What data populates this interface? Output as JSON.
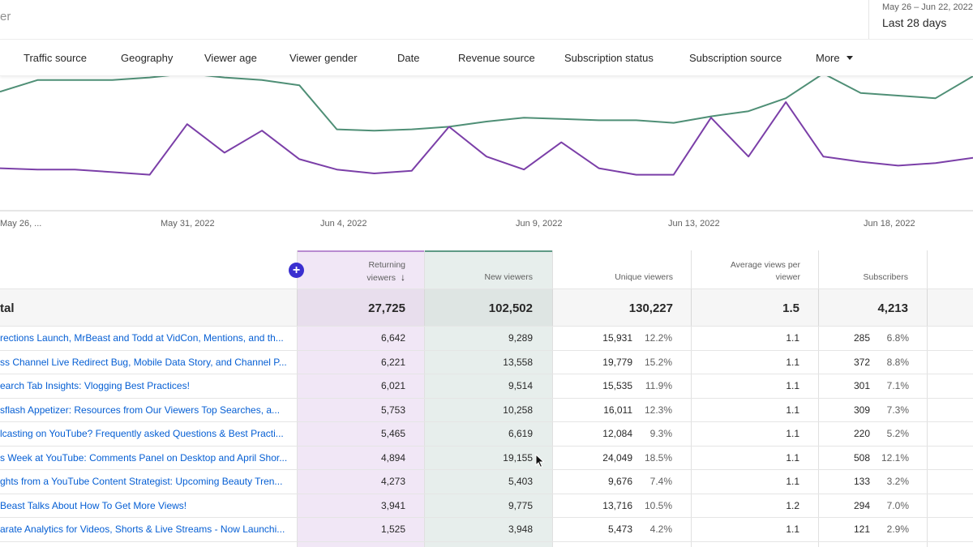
{
  "header": {
    "filter_fragment": "er",
    "date_range": "May 26 – Jun 22, 2022",
    "date_label": "Last 28 days"
  },
  "tabs": [
    "Traffic source",
    "Geography",
    "Viewer age",
    "Viewer gender",
    "Date",
    "Revenue source",
    "Subscription status",
    "Subscription source",
    "More"
  ],
  "chart_data": {
    "type": "line",
    "x_ticks": [
      "May 26, ...",
      "May 31, 2022",
      "Jun 4, 2022",
      "Jun 9, 2022",
      "Jun 13, 2022",
      "Jun 18, 2022"
    ],
    "series": [
      {
        "name": "New viewers",
        "color": "#4f8f76",
        "values": [
          0.88,
          0.97,
          0.97,
          0.97,
          0.99,
          1.02,
          0.99,
          0.97,
          0.93,
          0.59,
          0.58,
          0.59,
          0.61,
          0.65,
          0.68,
          0.67,
          0.66,
          0.66,
          0.64,
          0.69,
          0.73,
          0.83,
          1.02,
          0.87,
          0.85,
          0.83,
          1.0
        ]
      },
      {
        "name": "Returning viewers",
        "color": "#7b3fa8",
        "values": [
          0.29,
          0.28,
          0.28,
          0.26,
          0.24,
          0.63,
          0.41,
          0.58,
          0.36,
          0.28,
          0.25,
          0.27,
          0.61,
          0.38,
          0.28,
          0.49,
          0.29,
          0.24,
          0.24,
          0.68,
          0.38,
          0.8,
          0.38,
          0.34,
          0.31,
          0.33,
          0.37
        ]
      }
    ]
  },
  "table": {
    "headers": {
      "returning": [
        "Returning",
        "viewers"
      ],
      "new": "New viewers",
      "unique": "Unique viewers",
      "avg": [
        "Average views per",
        "viewer"
      ],
      "subscribers": "Subscribers"
    },
    "total": {
      "label": "tal",
      "returning": "27,725",
      "new": "102,502",
      "unique": "130,227",
      "avg": "1.5",
      "subscribers": "4,213"
    },
    "rows": [
      {
        "title": "rections Launch, MrBeast and Todd at VidCon, Mentions, and th...",
        "returning": "6,642",
        "new": "9,289",
        "unique": "15,931",
        "unique_pct": "12.2%",
        "avg": "1.1",
        "subs": "285",
        "subs_pct": "6.8%"
      },
      {
        "title": "ss Channel Live Redirect Bug, Mobile Data Story, and Channel P...",
        "returning": "6,221",
        "new": "13,558",
        "unique": "19,779",
        "unique_pct": "15.2%",
        "avg": "1.1",
        "subs": "372",
        "subs_pct": "8.8%"
      },
      {
        "title": "earch Tab Insights: Vlogging Best Practices!",
        "returning": "6,021",
        "new": "9,514",
        "unique": "15,535",
        "unique_pct": "11.9%",
        "avg": "1.1",
        "subs": "301",
        "subs_pct": "7.1%"
      },
      {
        "title": "sflash Appetizer: Resources from Our Viewers Top Searches, a...",
        "returning": "5,753",
        "new": "10,258",
        "unique": "16,011",
        "unique_pct": "12.3%",
        "avg": "1.1",
        "subs": "309",
        "subs_pct": "7.3%"
      },
      {
        "title": "lcasting on YouTube? Frequently asked Questions & Best Practi...",
        "returning": "5,465",
        "new": "6,619",
        "unique": "12,084",
        "unique_pct": "9.3%",
        "avg": "1.1",
        "subs": "220",
        "subs_pct": "5.2%"
      },
      {
        "title": "s Week at YouTube: Comments Panel on Desktop and April Shor...",
        "returning": "4,894",
        "new": "19,155",
        "unique": "24,049",
        "unique_pct": "18.5%",
        "avg": "1.1",
        "subs": "508",
        "subs_pct": "12.1%"
      },
      {
        "title": "ghts from a YouTube Content Strategist: Upcoming Beauty Tren...",
        "returning": "4,273",
        "new": "5,403",
        "unique": "9,676",
        "unique_pct": "7.4%",
        "avg": "1.1",
        "subs": "133",
        "subs_pct": "3.2%"
      },
      {
        "title": "Beast Talks About How To Get More Views!",
        "returning": "3,941",
        "new": "9,775",
        "unique": "13,716",
        "unique_pct": "10.5%",
        "avg": "1.2",
        "subs": "294",
        "subs_pct": "7.0%"
      },
      {
        "title": "arate Analytics for Videos, Shorts & Live Streams - Now Launchi...",
        "returning": "1,525",
        "new": "3,948",
        "unique": "5,473",
        "unique_pct": "4.2%",
        "avg": "1.1",
        "subs": "121",
        "subs_pct": "2.9%"
      }
    ]
  }
}
